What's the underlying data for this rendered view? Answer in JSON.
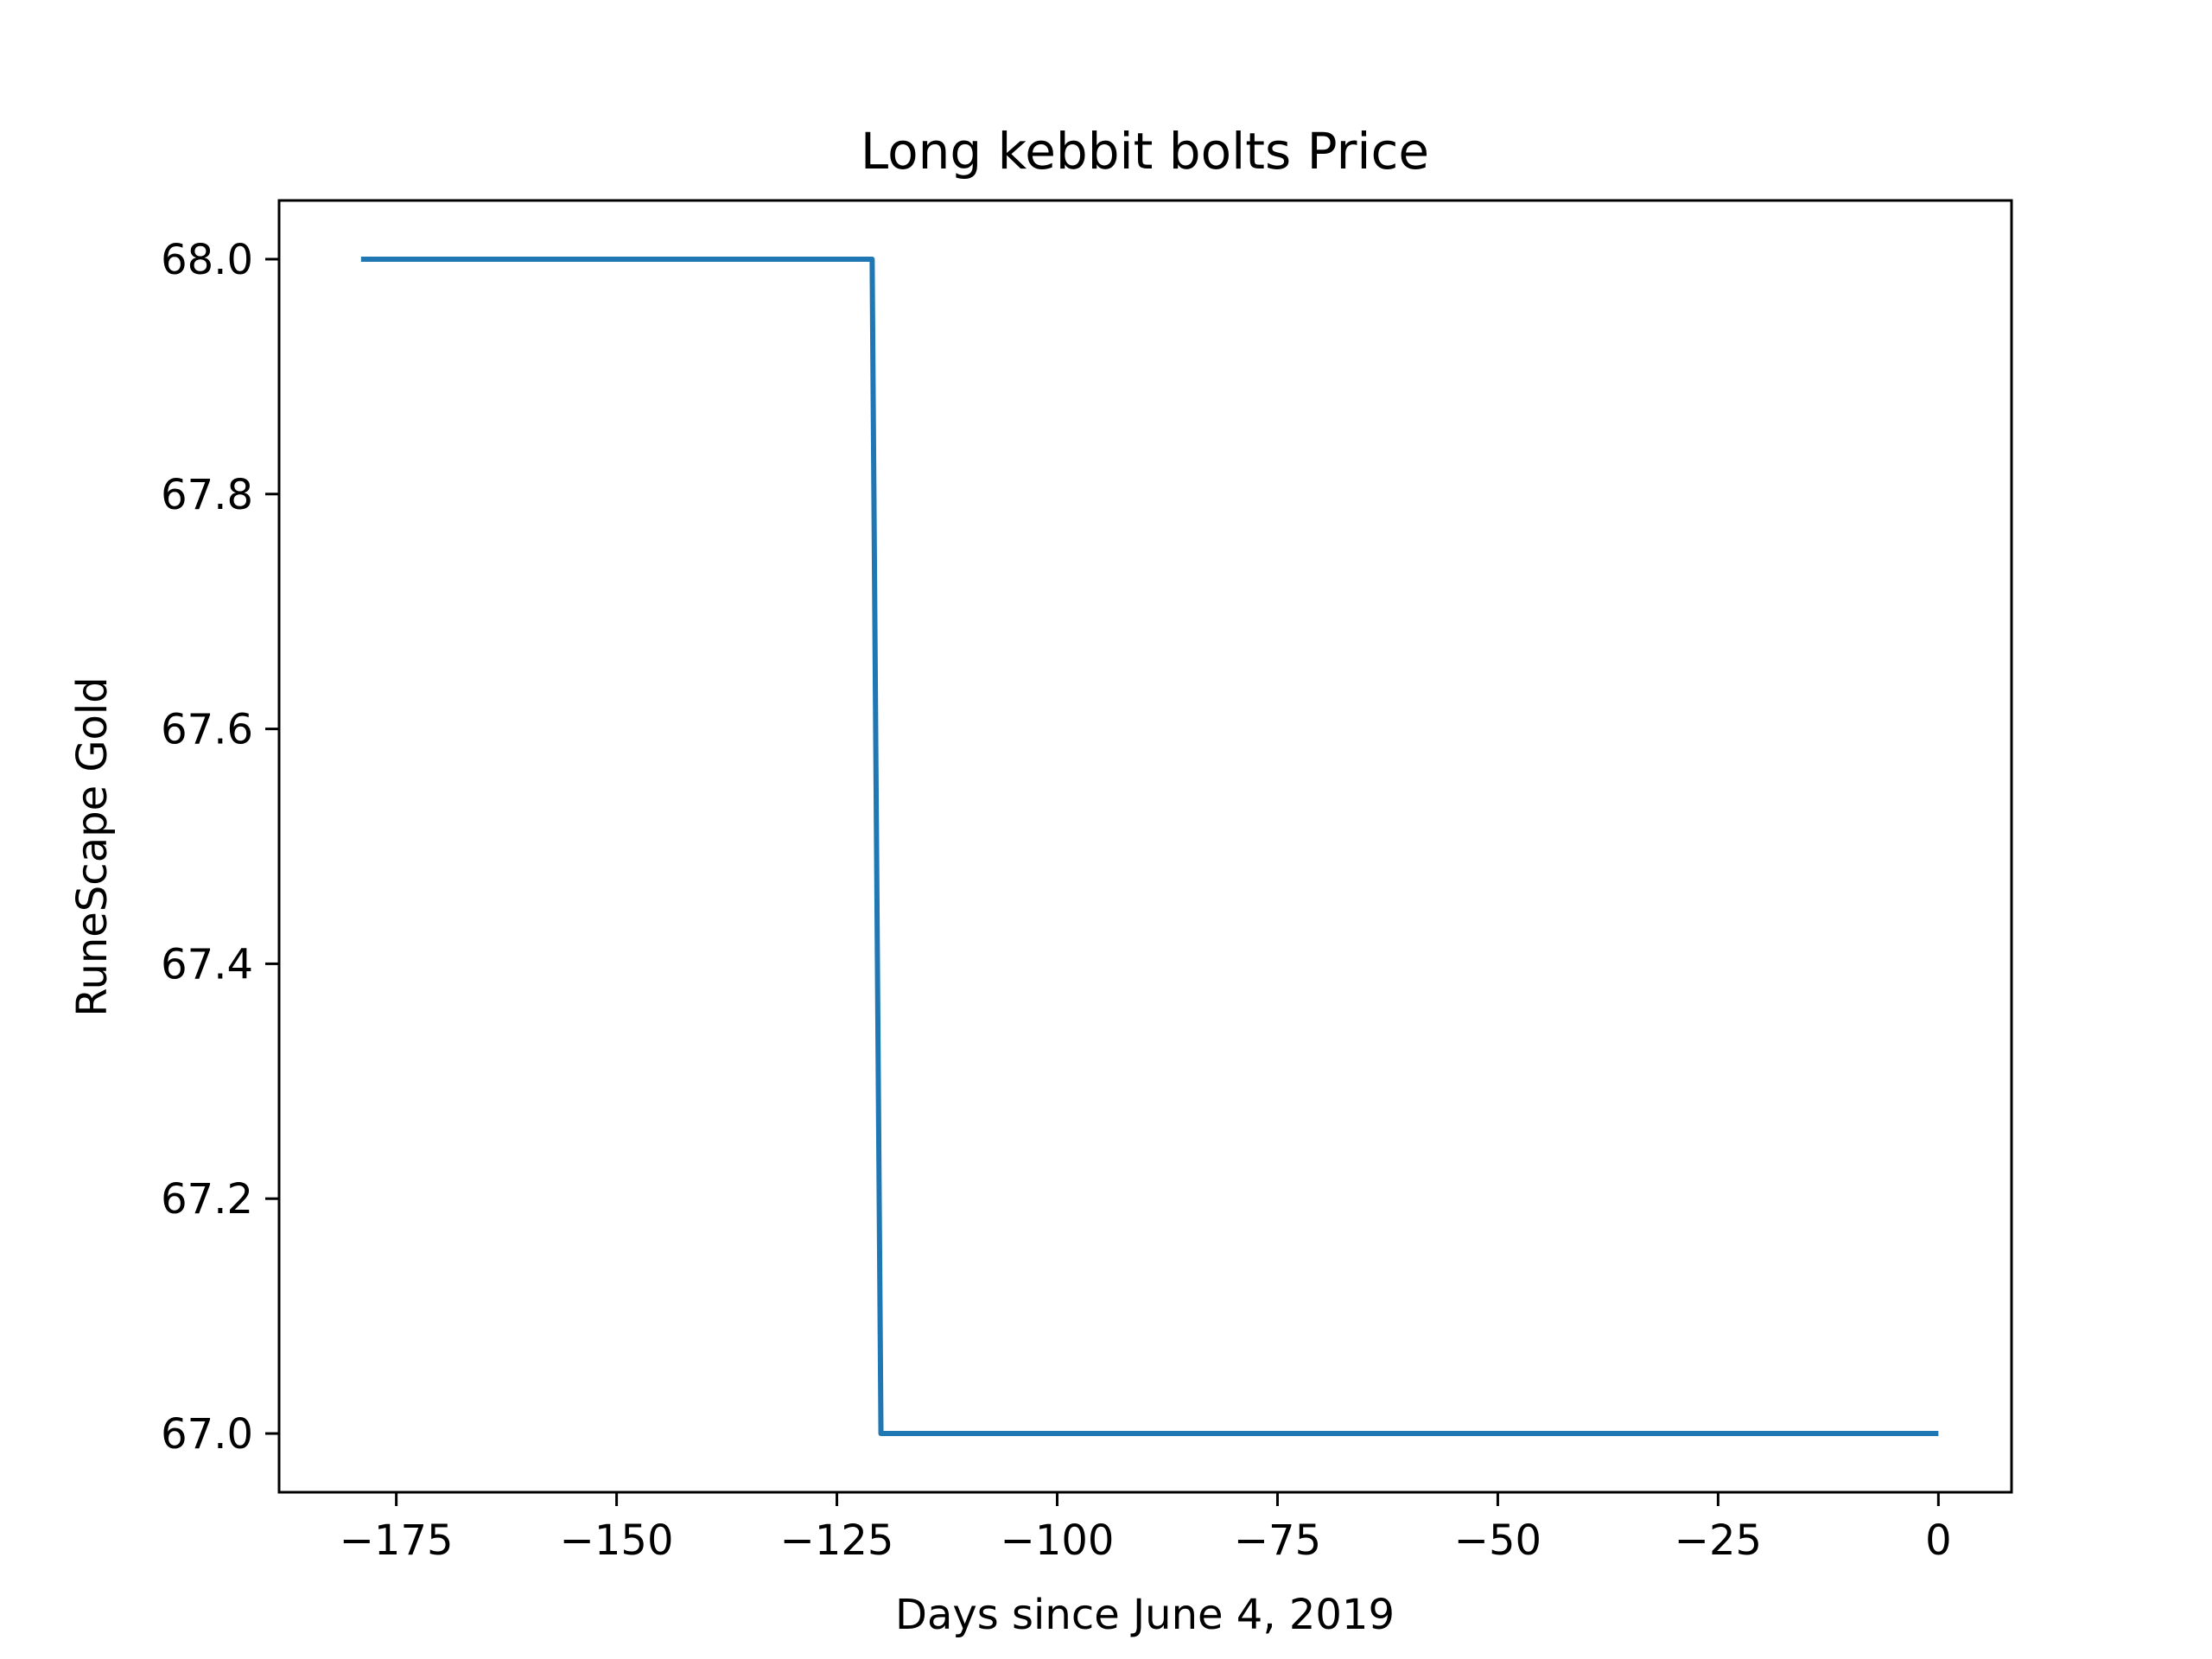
{
  "chart_data": {
    "type": "line",
    "title": "Long kebbit bolts Price",
    "xlabel": "Days since June 4, 2019",
    "ylabel": "RuneScape Gold",
    "xlim": [
      -188.3,
      8.3
    ],
    "ylim": [
      66.95,
      68.05
    ],
    "x_ticks": [
      -175,
      -150,
      -125,
      -100,
      -75,
      -50,
      -25,
      0
    ],
    "x_tick_labels": [
      "−175",
      "−150",
      "−125",
      "−100",
      "−75",
      "−50",
      "−25",
      "0"
    ],
    "y_ticks": [
      67.0,
      67.2,
      67.4,
      67.6,
      67.8,
      68.0
    ],
    "y_tick_labels": [
      "67.0",
      "67.2",
      "67.4",
      "67.6",
      "67.8",
      "68.0"
    ],
    "grid": false,
    "series": [
      {
        "color": "#1f77b4",
        "points": [
          {
            "x": -179,
            "y": 68.0
          },
          {
            "x": -121,
            "y": 68.0
          },
          {
            "x": -120,
            "y": 67.0
          },
          {
            "x": 0,
            "y": 67.0
          }
        ]
      }
    ]
  }
}
